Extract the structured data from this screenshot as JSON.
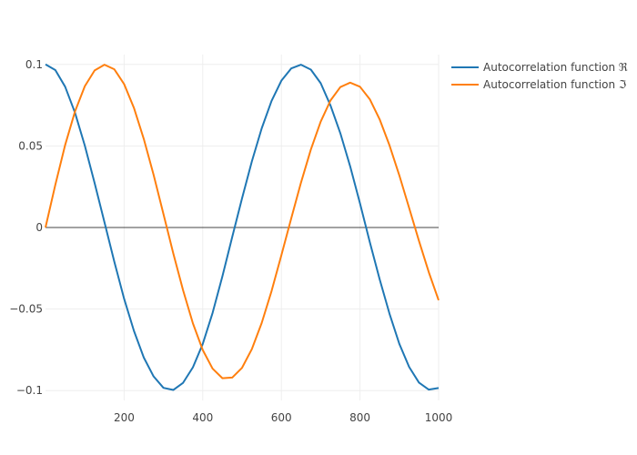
{
  "chart_data": {
    "type": "line",
    "title": "",
    "xlabel": "",
    "ylabel": "",
    "xlim": [
      0,
      1000
    ],
    "ylim": [
      -0.106,
      0.106
    ],
    "x_ticks": [
      200,
      400,
      600,
      800,
      1000
    ],
    "x_tick_labels": [
      "200",
      "400",
      "600",
      "800",
      "1000"
    ],
    "y_ticks": [
      0.1,
      0.05,
      0,
      -0.05,
      -0.1
    ],
    "y_tick_labels": [
      "0.1",
      "0.05",
      "0",
      "−0.05",
      "−0.1"
    ],
    "grid": true,
    "zero_line": true,
    "legend_position": "top-right",
    "series": [
      {
        "name": "Autocorrelation function ℜ",
        "color": "#1f77b4",
        "x": [
          0,
          25,
          50,
          75,
          100,
          125,
          150,
          175,
          200,
          225,
          250,
          275,
          300,
          325,
          350,
          375,
          400,
          425,
          450,
          475,
          500,
          525,
          550,
          575,
          600,
          625,
          650,
          675,
          700,
          725,
          750,
          775,
          800,
          825,
          850,
          875,
          900,
          925,
          950,
          975,
          1000
        ],
        "y": [
          0.1,
          0.0965,
          0.0863,
          0.0704,
          0.0502,
          0.0272,
          0.0032,
          -0.0209,
          -0.0437,
          -0.0634,
          -0.0797,
          -0.0913,
          -0.0983,
          -0.0996,
          -0.0952,
          -0.0857,
          -0.0714,
          -0.0524,
          -0.0299,
          -0.0058,
          0.0179,
          0.0406,
          0.0608,
          0.0776,
          0.09,
          0.0975,
          0.0998,
          0.0968,
          0.0885,
          0.0748,
          0.0578,
          0.0375,
          0.0148,
          -0.009,
          -0.0317,
          -0.0528,
          -0.0713,
          -0.0855,
          -0.0951,
          -0.0994,
          -0.0984
        ]
      },
      {
        "name": "Autocorrelation function ℑ",
        "color": "#ff7f0e",
        "x": [
          0,
          25,
          50,
          75,
          100,
          125,
          150,
          175,
          200,
          225,
          250,
          275,
          300,
          325,
          350,
          375,
          400,
          425,
          450,
          475,
          500,
          525,
          550,
          575,
          600,
          625,
          650,
          675,
          700,
          725,
          750,
          775,
          800,
          825,
          850,
          875,
          900,
          925,
          950,
          975,
          1000
        ],
        "y": [
          0,
          0.0262,
          0.0506,
          0.0711,
          0.0866,
          0.0963,
          0.0998,
          0.097,
          0.0879,
          0.0733,
          0.0543,
          0.0323,
          0.0083,
          -0.0158,
          -0.0385,
          -0.0588,
          -0.0751,
          -0.0865,
          -0.0924,
          -0.092,
          -0.086,
          -0.0745,
          -0.0585,
          -0.039,
          -0.017,
          0.0055,
          0.0276,
          0.0478,
          0.0649,
          0.0779,
          0.0861,
          0.0888,
          0.0863,
          0.0786,
          0.0663,
          0.0504,
          0.032,
          0.012,
          -0.0082,
          -0.0274,
          -0.0446
        ]
      }
    ]
  }
}
